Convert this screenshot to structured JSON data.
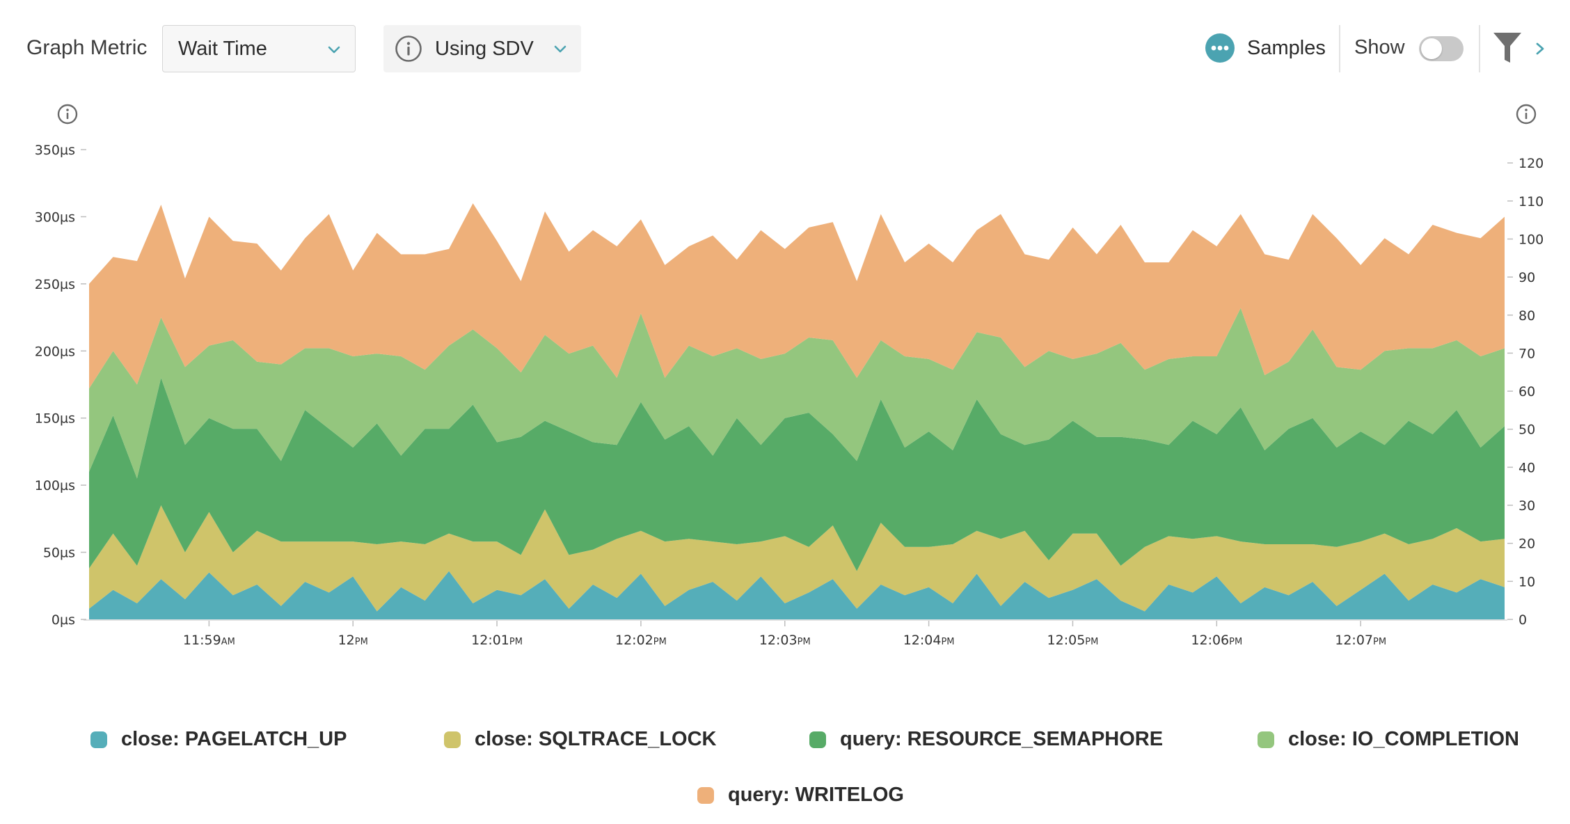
{
  "toolbar": {
    "metric_label": "Graph Metric",
    "metric_value": "Wait Time",
    "sdv_value": "Using SDV",
    "samples_label": "Samples",
    "show_label": "Show",
    "show_toggle_on": false,
    "accent": "#4ba3b1"
  },
  "chart_data": {
    "type": "area",
    "stacked": true,
    "x": [
      "11:58:10",
      "11:58:20",
      "11:58:30",
      "11:58:40",
      "11:58:50",
      "11:59:00",
      "11:59:10",
      "11:59:20",
      "11:59:30",
      "11:59:40",
      "11:59:50",
      "12:00:00",
      "12:00:10",
      "12:00:20",
      "12:00:30",
      "12:00:40",
      "12:00:50",
      "12:01:00",
      "12:01:10",
      "12:01:20",
      "12:01:30",
      "12:01:40",
      "12:01:50",
      "12:02:00",
      "12:02:10",
      "12:02:20",
      "12:02:30",
      "12:02:40",
      "12:02:50",
      "12:03:00",
      "12:03:10",
      "12:03:20",
      "12:03:30",
      "12:03:40",
      "12:03:50",
      "12:04:00",
      "12:04:10",
      "12:04:20",
      "12:04:30",
      "12:04:40",
      "12:04:50",
      "12:05:00",
      "12:05:10",
      "12:05:20",
      "12:05:30",
      "12:05:40",
      "12:05:50",
      "12:06:00",
      "12:06:10",
      "12:06:20",
      "12:06:30",
      "12:06:40",
      "12:06:50",
      "12:07:00",
      "12:07:10",
      "12:07:20",
      "12:07:30",
      "12:07:40",
      "12:07:50",
      "12:08:00"
    ],
    "x_ticks": [
      {
        "value": "11:59:00",
        "hour": "11:59",
        "ampm": "AM"
      },
      {
        "value": "12:00:00",
        "hour": "12",
        "ampm": "PM"
      },
      {
        "value": "12:01:00",
        "hour": "12:01",
        "ampm": "PM"
      },
      {
        "value": "12:02:00",
        "hour": "12:02",
        "ampm": "PM"
      },
      {
        "value": "12:03:00",
        "hour": "12:03",
        "ampm": "PM"
      },
      {
        "value": "12:04:00",
        "hour": "12:04",
        "ampm": "PM"
      },
      {
        "value": "12:05:00",
        "hour": "12:05",
        "ampm": "PM"
      },
      {
        "value": "12:06:00",
        "hour": "12:06",
        "ampm": "PM"
      },
      {
        "value": "12:07:00",
        "hour": "12:07",
        "ampm": "PM"
      }
    ],
    "y_ticks": [
      "0µs",
      "50µs",
      "100µs",
      "150µs",
      "200µs",
      "250µs",
      "300µs",
      "350µs"
    ],
    "ylim": [
      0,
      350
    ],
    "y2_ticks": [
      "0",
      "10",
      "20",
      "30",
      "40",
      "50",
      "60",
      "70",
      "80",
      "90",
      "100",
      "110",
      "120"
    ],
    "y2lim": [
      0,
      123.5
    ],
    "grid": false,
    "legend_position": "bottom",
    "series": [
      {
        "name": "close: PAGELATCH_UP",
        "color": "#55aeb9",
        "values": [
          8,
          22,
          12,
          30,
          15,
          35,
          18,
          26,
          10,
          28,
          20,
          32,
          6,
          24,
          14,
          36,
          12,
          22,
          18,
          30,
          8,
          26,
          16,
          34,
          10,
          22,
          28,
          14,
          32,
          12,
          20,
          30,
          8,
          26,
          18,
          24,
          12,
          34,
          10,
          28,
          16,
          22,
          30,
          14,
          6,
          26,
          20,
          32,
          12,
          24,
          18,
          28,
          10,
          22,
          34,
          14,
          26,
          20,
          30,
          24
        ]
      },
      {
        "name": "close: SQLTRACE_LOCK",
        "color": "#cfc46a",
        "values": [
          30,
          42,
          28,
          55,
          35,
          45,
          32,
          40,
          48,
          30,
          38,
          26,
          50,
          34,
          42,
          28,
          46,
          36,
          30,
          52,
          40,
          26,
          44,
          32,
          48,
          38,
          30,
          42,
          26,
          50,
          34,
          40,
          28,
          46,
          36,
          30,
          44,
          32,
          50,
          38,
          28,
          42,
          34,
          26,
          48,
          36,
          40,
          30,
          46,
          32,
          38,
          28,
          44,
          36,
          30,
          42,
          34,
          48,
          28,
          36
        ]
      },
      {
        "name": "query: RESOURCE_SEMAPHORE",
        "color": "#57ab67",
        "values": [
          72,
          88,
          65,
          95,
          80,
          70,
          92,
          76,
          60,
          98,
          84,
          70,
          90,
          64,
          86,
          78,
          102,
          74,
          88,
          66,
          92,
          80,
          70,
          96,
          76,
          84,
          64,
          94,
          72,
          88,
          100,
          68,
          82,
          92,
          74,
          86,
          70,
          98,
          78,
          64,
          90,
          84,
          72,
          96,
          80,
          68,
          88,
          76,
          100,
          70,
          86,
          94,
          74,
          82,
          66,
          92,
          78,
          88,
          70,
          84
        ]
      },
      {
        "name": "close: IO_COMPLETION",
        "color": "#94c67e",
        "values": [
          62,
          48,
          70,
          45,
          58,
          54,
          66,
          50,
          72,
          46,
          60,
          68,
          52,
          74,
          44,
          62,
          56,
          70,
          48,
          64,
          58,
          72,
          50,
          66,
          46,
          60,
          74,
          52,
          64,
          48,
          56,
          70,
          62,
          44,
          68,
          54,
          60,
          50,
          72,
          58,
          66,
          46,
          62,
          70,
          52,
          64,
          48,
          58,
          74,
          56,
          50,
          66,
          60,
          46,
          70,
          54,
          64,
          52,
          68,
          58
        ]
      },
      {
        "name": "query: WRITELOG",
        "color": "#eeb07a",
        "values": [
          78,
          70,
          92,
          84,
          66,
          96,
          74,
          88,
          70,
          82,
          100,
          64,
          90,
          76,
          86,
          72,
          94,
          80,
          68,
          92,
          76,
          86,
          98,
          70,
          84,
          74,
          90,
          66,
          96,
          78,
          82,
          88,
          72,
          94,
          70,
          86,
          80,
          76,
          92,
          84,
          68,
          98,
          74,
          88,
          80,
          72,
          94,
          82,
          70,
          90,
          76,
          86,
          96,
          78,
          84,
          70,
          92,
          80,
          88,
          98
        ]
      }
    ]
  }
}
